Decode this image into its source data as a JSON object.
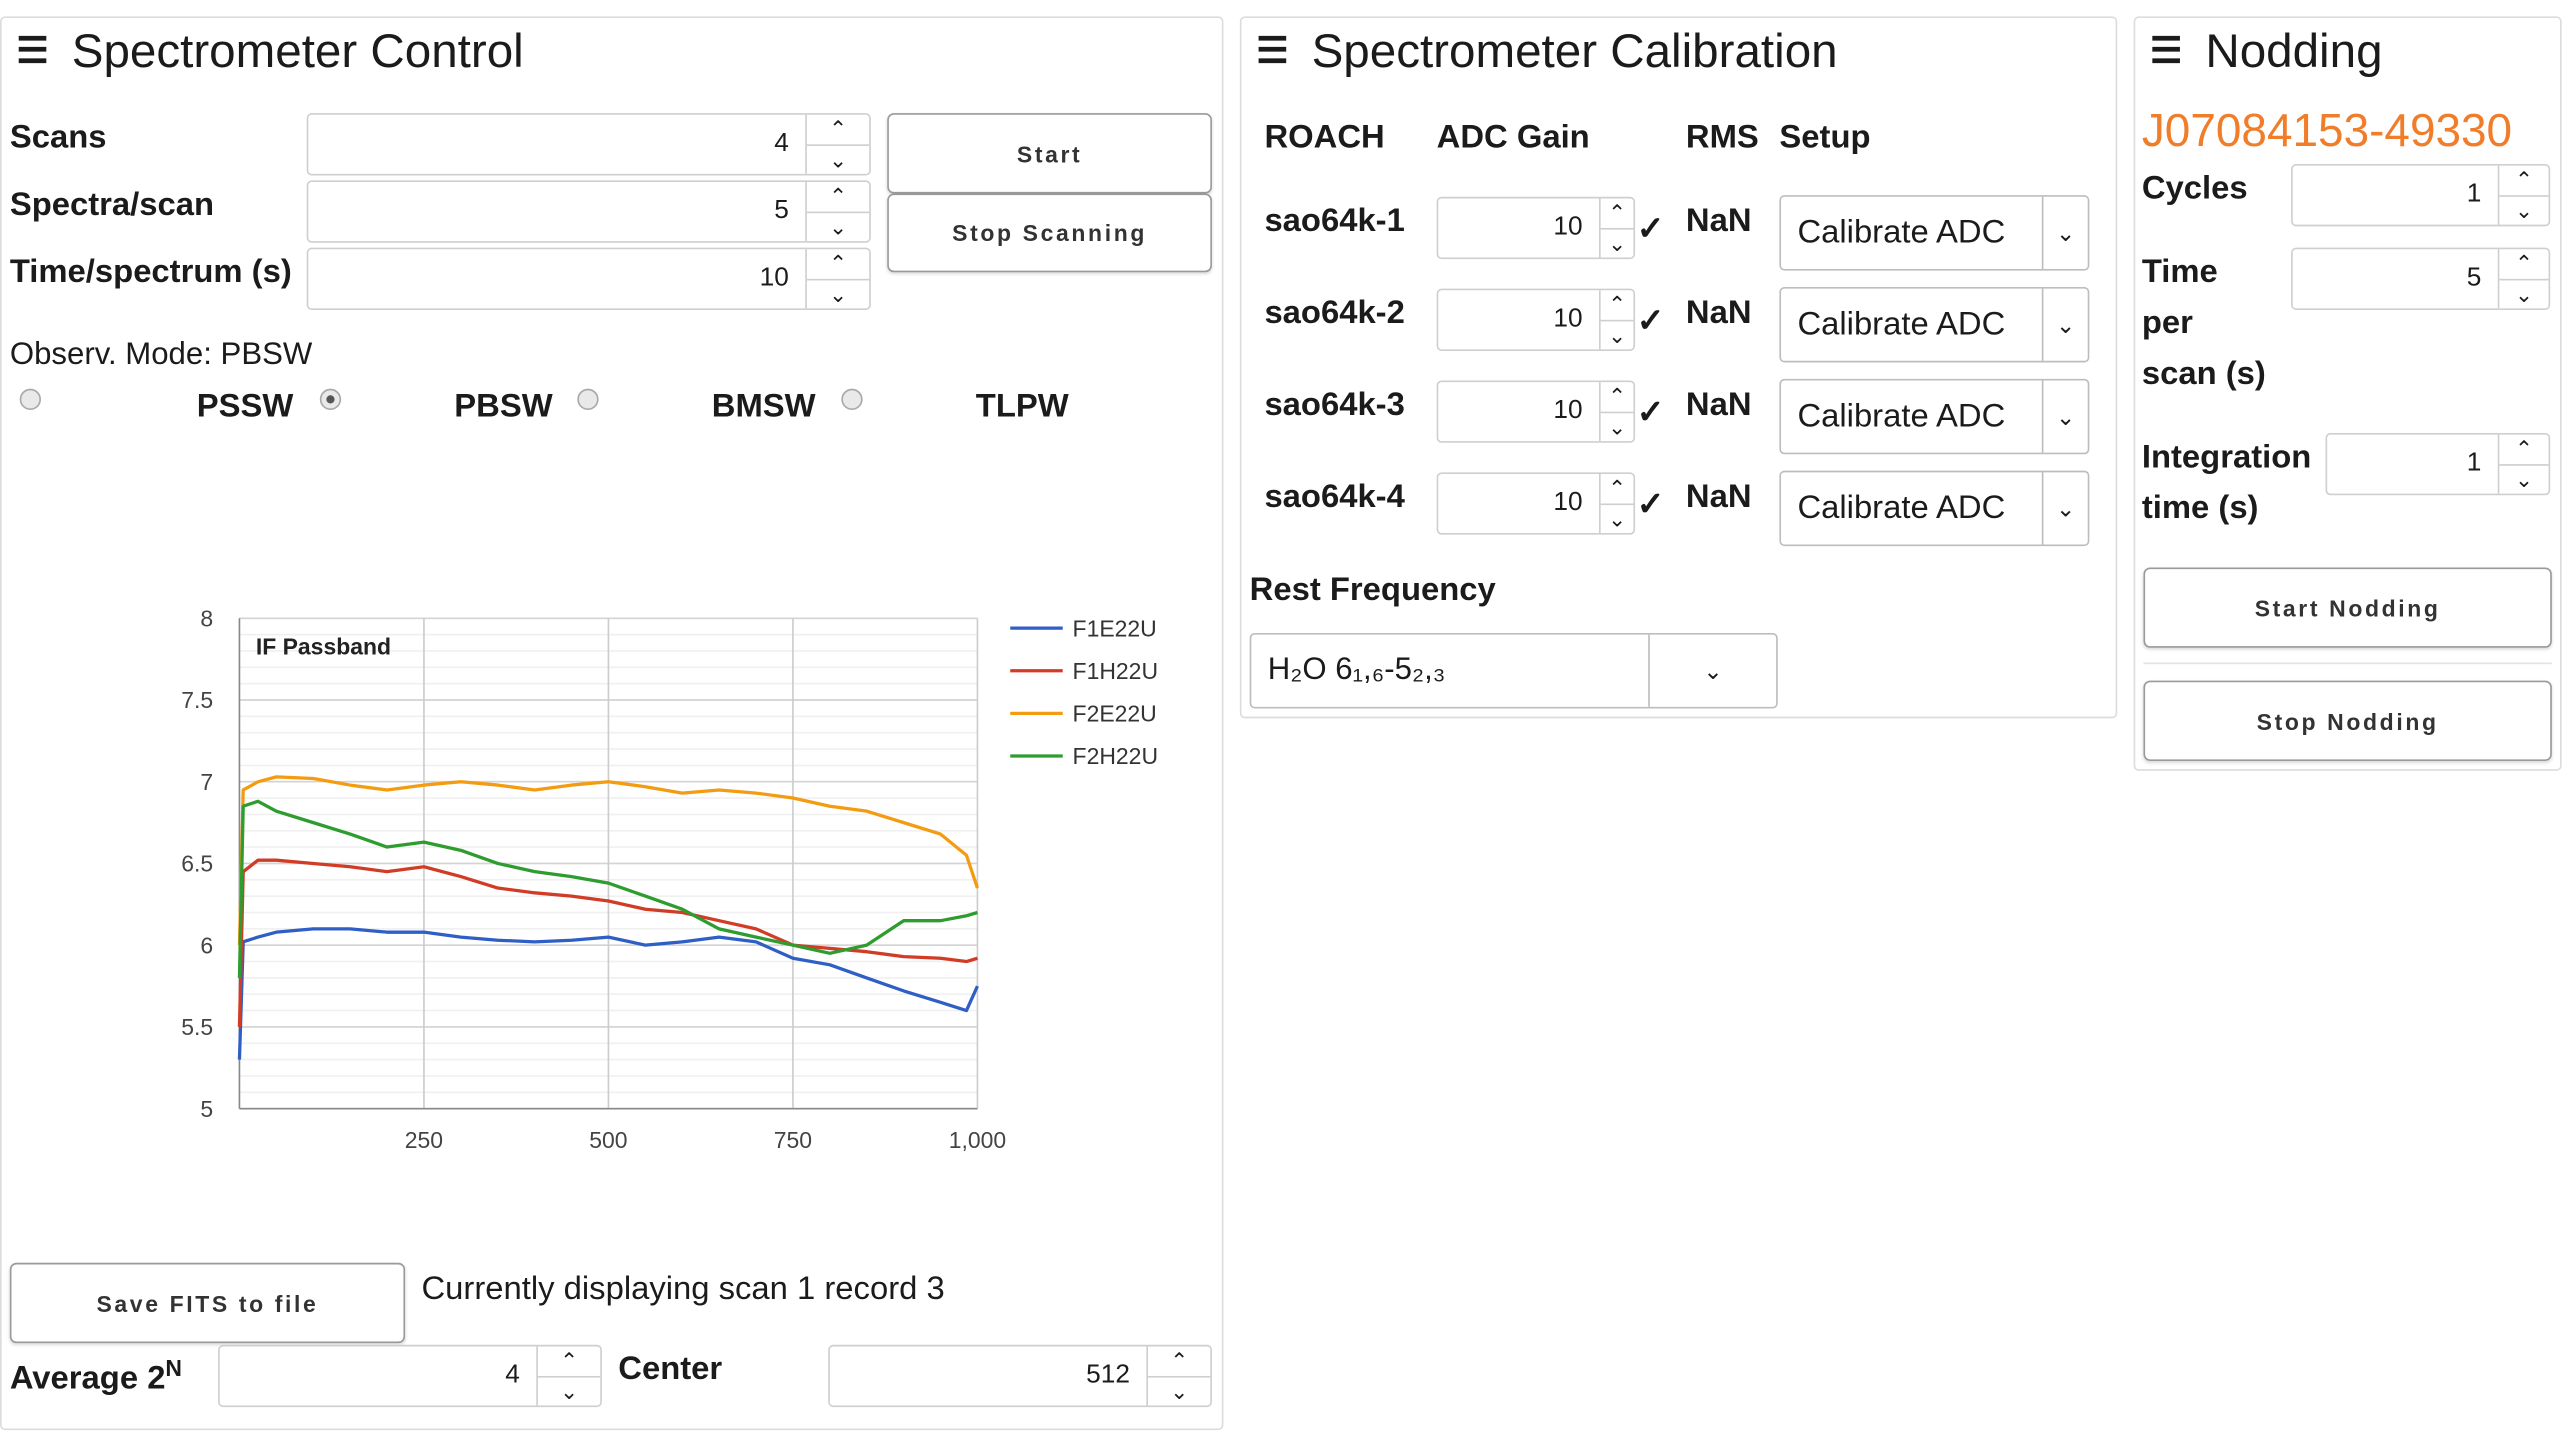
{
  "control": {
    "title": "Spectrometer Control",
    "fields": [
      {
        "label": "Scans",
        "value": "4"
      },
      {
        "label": "Spectra/scan",
        "value": "5"
      },
      {
        "label": "Time/spectrum (s)",
        "value": "10"
      }
    ],
    "start_label": "Start",
    "stop_label": "Stop Scanning",
    "mode_label": "Observ. Mode: PBSW",
    "modes": [
      {
        "label": "PSSW",
        "selected": false
      },
      {
        "label": "PBSW",
        "selected": true
      },
      {
        "label": "BMSW",
        "selected": false
      },
      {
        "label": "TLPW",
        "selected": false
      }
    ],
    "save_label": "Save FITS to file",
    "status_text": "Currently displaying scan 1 record 3",
    "average_label": "Average 2",
    "average_sup": "N",
    "average_value": "4",
    "center_label": "Center",
    "center_value": "512"
  },
  "chart_data": {
    "type": "line",
    "title": "IF Passband",
    "xlim": [
      0,
      1000
    ],
    "ylim": [
      5,
      8
    ],
    "x_ticks": [
      250,
      500,
      750,
      1000
    ],
    "x_tick_labels": [
      "250",
      "500",
      "750",
      "1,000"
    ],
    "y_ticks": [
      5,
      5.5,
      6,
      6.5,
      7,
      7.5,
      8
    ],
    "y_tick_labels": [
      "5",
      "5.5",
      "6",
      "6.5",
      "7",
      "7.5",
      "8"
    ],
    "grid": true,
    "legend_position": "right",
    "series": [
      {
        "name": "F1E22U",
        "color": "#2f5fc4",
        "x": [
          0,
          5,
          25,
          50,
          100,
          150,
          200,
          250,
          300,
          350,
          400,
          450,
          500,
          550,
          600,
          650,
          700,
          750,
          800,
          850,
          900,
          950,
          985,
          1000
        ],
        "y": [
          5.3,
          6.02,
          6.05,
          6.08,
          6.1,
          6.1,
          6.08,
          6.08,
          6.05,
          6.03,
          6.02,
          6.03,
          6.05,
          6.0,
          6.02,
          6.05,
          6.02,
          5.92,
          5.88,
          5.8,
          5.72,
          5.65,
          5.6,
          5.75
        ]
      },
      {
        "name": "F1H22U",
        "color": "#d13c27",
        "x": [
          0,
          5,
          25,
          50,
          100,
          150,
          200,
          250,
          300,
          350,
          400,
          450,
          500,
          550,
          600,
          650,
          700,
          750,
          800,
          850,
          900,
          950,
          985,
          1000
        ],
        "y": [
          5.5,
          6.45,
          6.52,
          6.52,
          6.5,
          6.48,
          6.45,
          6.48,
          6.42,
          6.35,
          6.32,
          6.3,
          6.27,
          6.22,
          6.2,
          6.15,
          6.1,
          6.0,
          5.98,
          5.96,
          5.93,
          5.92,
          5.9,
          5.92
        ]
      },
      {
        "name": "F2E22U",
        "color": "#f39c12",
        "x": [
          0,
          5,
          25,
          50,
          100,
          150,
          200,
          250,
          300,
          350,
          400,
          450,
          500,
          550,
          600,
          650,
          700,
          750,
          800,
          850,
          900,
          950,
          985,
          1000
        ],
        "y": [
          6.0,
          6.95,
          7.0,
          7.03,
          7.02,
          6.98,
          6.95,
          6.98,
          7.0,
          6.98,
          6.95,
          6.98,
          7.0,
          6.97,
          6.93,
          6.95,
          6.93,
          6.9,
          6.85,
          6.82,
          6.75,
          6.68,
          6.55,
          6.35
        ]
      },
      {
        "name": "F2H22U",
        "color": "#2e9c2e",
        "x": [
          0,
          5,
          25,
          50,
          100,
          150,
          200,
          250,
          300,
          350,
          400,
          450,
          500,
          550,
          600,
          650,
          700,
          750,
          800,
          850,
          900,
          950,
          985,
          1000
        ],
        "y": [
          5.8,
          6.85,
          6.88,
          6.82,
          6.75,
          6.68,
          6.6,
          6.63,
          6.58,
          6.5,
          6.45,
          6.42,
          6.38,
          6.3,
          6.22,
          6.1,
          6.05,
          6.0,
          5.95,
          6.0,
          6.15,
          6.15,
          6.18,
          6.2
        ]
      }
    ]
  },
  "calibration": {
    "title": "Spectrometer Calibration",
    "headers": [
      "ROACH",
      "ADC Gain",
      "RMS",
      "Setup"
    ],
    "rows": [
      {
        "roach": "sao64k-1",
        "gain": "10",
        "rms": "NaN",
        "setup": "Calibrate ADC"
      },
      {
        "roach": "sao64k-2",
        "gain": "10",
        "rms": "NaN",
        "setup": "Calibrate ADC"
      },
      {
        "roach": "sao64k-3",
        "gain": "10",
        "rms": "NaN",
        "setup": "Calibrate ADC"
      },
      {
        "roach": "sao64k-4",
        "gain": "10",
        "rms": "NaN",
        "setup": "Calibrate ADC"
      }
    ],
    "rest_freq_label": "Rest Frequency",
    "rest_freq_value": "H₂O 6₁,₆-5₂,₃"
  },
  "nodding": {
    "title": "Nodding",
    "source": "J07084153-49330",
    "source_color": "#f07d2a",
    "cycles_label": "Cycles",
    "cycles_value": "1",
    "time_label_1": "Time",
    "time_label_2": "per",
    "time_label_3": "scan (s)",
    "time_value": "5",
    "integration_label_1": "Integration",
    "integration_label_2": "time (s)",
    "integration_value": "1",
    "start_label": "Start Nodding",
    "stop_label": "Stop Nodding"
  }
}
